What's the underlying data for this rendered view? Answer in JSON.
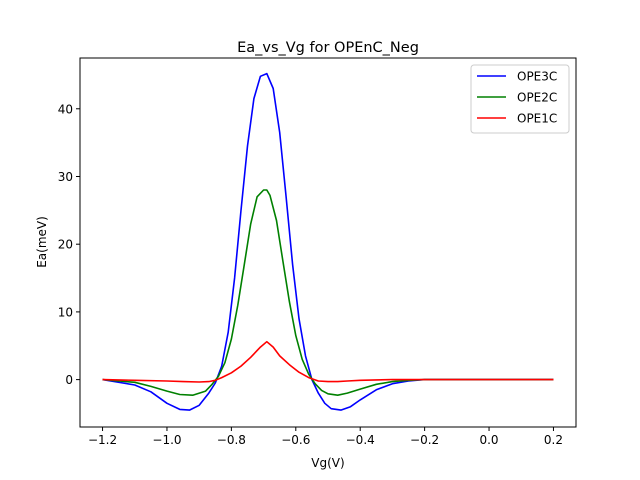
{
  "chart_data": {
    "type": "line",
    "title": "Ea_vs_Vg for OPEnC_Neg",
    "xlabel": "Vg(V)",
    "ylabel": "Ea(meV)",
    "xlim": [
      -1.27,
      0.27
    ],
    "ylim": [
      -7.0,
      47.5
    ],
    "xticks": [
      -1.2,
      -1.0,
      -0.8,
      -0.6,
      -0.4,
      -0.2,
      0.0,
      0.2
    ],
    "xtick_labels": [
      "−1.2",
      "−1.0",
      "−0.8",
      "−0.6",
      "−0.4",
      "−0.2",
      "0.0",
      "0.2"
    ],
    "yticks": [
      0,
      10,
      20,
      30,
      40
    ],
    "ytick_labels": [
      "0",
      "10",
      "20",
      "30",
      "40"
    ],
    "grid": false,
    "legend_position": "top-right",
    "series": [
      {
        "name": "OPE3C",
        "color": "#0000ff",
        "x": [
          -1.2,
          -1.1,
          -1.05,
          -1.0,
          -0.96,
          -0.93,
          -0.9,
          -0.87,
          -0.85,
          -0.83,
          -0.81,
          -0.79,
          -0.77,
          -0.75,
          -0.73,
          -0.71,
          -0.69,
          -0.67,
          -0.65,
          -0.63,
          -0.61,
          -0.59,
          -0.57,
          -0.55,
          -0.53,
          -0.51,
          -0.49,
          -0.46,
          -0.43,
          -0.4,
          -0.35,
          -0.3,
          -0.25,
          -0.2,
          -0.1,
          0.0,
          0.2
        ],
        "y": [
          0.0,
          -0.8,
          -1.8,
          -3.5,
          -4.4,
          -4.5,
          -3.8,
          -2.0,
          -0.5,
          2.0,
          7.0,
          15.0,
          25.0,
          34.5,
          41.5,
          44.8,
          45.2,
          43.0,
          36.5,
          27.0,
          17.0,
          9.0,
          3.5,
          0.0,
          -2.0,
          -3.5,
          -4.3,
          -4.5,
          -4.0,
          -3.0,
          -1.5,
          -0.6,
          -0.2,
          0.0,
          0.0,
          0.0,
          0.0
        ]
      },
      {
        "name": "OPE2C",
        "color": "#008000",
        "x": [
          -1.2,
          -1.1,
          -1.05,
          -1.0,
          -0.96,
          -0.92,
          -0.88,
          -0.86,
          -0.84,
          -0.82,
          -0.8,
          -0.78,
          -0.76,
          -0.74,
          -0.72,
          -0.7,
          -0.69,
          -0.68,
          -0.66,
          -0.64,
          -0.62,
          -0.6,
          -0.58,
          -0.56,
          -0.54,
          -0.52,
          -0.5,
          -0.47,
          -0.44,
          -0.4,
          -0.35,
          -0.3,
          -0.25,
          -0.2,
          0.0,
          0.2
        ],
        "y": [
          0.0,
          -0.4,
          -1.0,
          -1.7,
          -2.2,
          -2.3,
          -1.7,
          -0.7,
          0.5,
          2.5,
          6.0,
          11.0,
          17.0,
          23.0,
          27.0,
          28.0,
          28.0,
          27.2,
          23.5,
          17.5,
          11.5,
          6.5,
          3.0,
          0.8,
          -0.6,
          -1.6,
          -2.1,
          -2.3,
          -2.0,
          -1.4,
          -0.7,
          -0.3,
          -0.1,
          0.0,
          0.0,
          0.0
        ]
      },
      {
        "name": "OPE1C",
        "color": "#ff0000",
        "x": [
          -1.2,
          -1.1,
          -1.0,
          -0.95,
          -0.9,
          -0.87,
          -0.85,
          -0.83,
          -0.8,
          -0.77,
          -0.74,
          -0.71,
          -0.69,
          -0.67,
          -0.65,
          -0.62,
          -0.59,
          -0.56,
          -0.53,
          -0.5,
          -0.47,
          -0.44,
          -0.4,
          -0.35,
          -0.3,
          -0.2,
          0.0,
          0.2
        ],
        "y": [
          0.0,
          -0.1,
          -0.2,
          -0.3,
          -0.35,
          -0.3,
          -0.1,
          0.3,
          1.0,
          2.0,
          3.3,
          4.8,
          5.6,
          4.8,
          3.5,
          2.2,
          1.1,
          0.3,
          -0.2,
          -0.3,
          -0.3,
          -0.2,
          -0.1,
          -0.05,
          0.0,
          0.0,
          0.0,
          0.0
        ]
      }
    ]
  }
}
